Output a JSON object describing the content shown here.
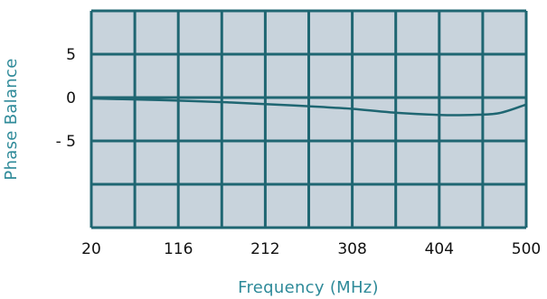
{
  "chart_data": {
    "type": "line",
    "title": "",
    "xlabel": "Frequency (MHz)",
    "ylabel": "Phase Balance",
    "xlim": [
      20,
      500
    ],
    "ylim": [
      -15,
      10
    ],
    "grid": true,
    "x_ticks": [
      20,
      116,
      212,
      308,
      404,
      500
    ],
    "y_ticks": [
      5,
      0,
      -5
    ],
    "y_tick_labels": [
      "5",
      "0",
      "- 5"
    ],
    "series": [
      {
        "x": [
          20,
          60,
          116,
          170,
          212,
          260,
          308,
          350,
          404,
          440,
          470,
          500
        ],
        "y": [
          -0.1,
          -0.2,
          -0.35,
          -0.55,
          -0.75,
          -1.0,
          -1.3,
          -1.7,
          -2.0,
          -2.0,
          -1.8,
          -0.8
        ]
      }
    ],
    "colors": {
      "plot_bg": "#c8d3dc",
      "grid": "#1f6672",
      "line": "#1f6672",
      "label_accent": "#2e8a99"
    }
  }
}
